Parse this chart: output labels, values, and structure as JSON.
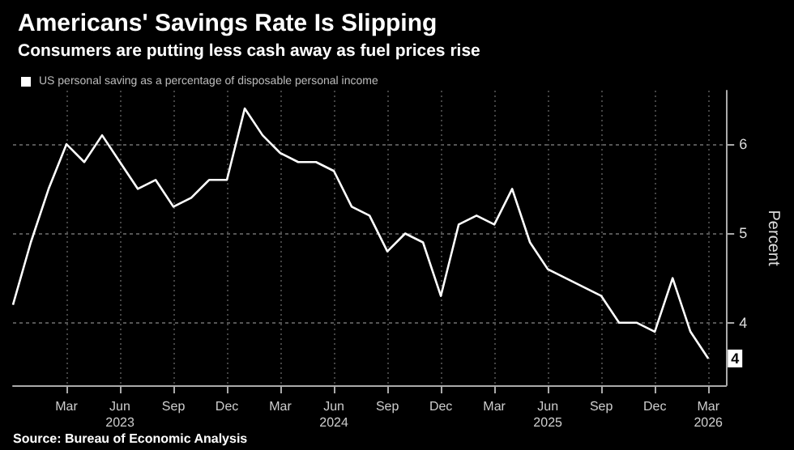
{
  "chart_data": {
    "type": "line",
    "title": "Americans' Savings Rate Is Slipping",
    "subtitle": "Consumers are putting less cash away as fuel prices rise",
    "ylabel": "Percent",
    "annotations": [
      "Source: Bureau of Economic Analysis"
    ],
    "x": [
      "2022-12",
      "2023-01",
      "2023-02",
      "2023-03",
      "2023-04",
      "2023-05",
      "2023-06",
      "2023-07",
      "2023-08",
      "2023-09",
      "2023-10",
      "2023-11",
      "2023-12",
      "2024-01",
      "2024-02",
      "2024-03",
      "2024-04",
      "2024-05",
      "2024-06",
      "2024-07",
      "2024-08",
      "2024-09",
      "2024-10",
      "2024-11",
      "2024-12",
      "2025-01",
      "2025-02",
      "2025-03",
      "2025-04",
      "2025-05",
      "2025-06",
      "2025-07",
      "2025-08",
      "2025-09",
      "2025-10",
      "2025-11",
      "2025-12",
      "2026-01",
      "2026-02",
      "2026-03"
    ],
    "series": [
      {
        "name": "US personal saving as a percentage of disposable personal income",
        "color": "#ffffff",
        "values": [
          4.2,
          4.9,
          5.5,
          6.0,
          5.8,
          6.1,
          5.8,
          5.5,
          5.6,
          5.3,
          5.4,
          5.6,
          5.6,
          6.4,
          6.1,
          5.9,
          5.8,
          5.8,
          5.7,
          5.3,
          5.2,
          4.8,
          5.0,
          4.9,
          4.3,
          5.1,
          5.2,
          5.1,
          5.5,
          4.9,
          4.6,
          4.5,
          4.4,
          4.3,
          4.0,
          4.0,
          3.9,
          4.5,
          3.9,
          3.6
        ],
        "value_labels": [
          null,
          null,
          null,
          null,
          null,
          null,
          null,
          null,
          null,
          null,
          null,
          null,
          null,
          null,
          null,
          null,
          null,
          null,
          null,
          null,
          null,
          null,
          null,
          null,
          null,
          null,
          null,
          null,
          null,
          null,
          null,
          null,
          null,
          null,
          null,
          null,
          null,
          null,
          null,
          "4"
        ]
      }
    ],
    "xlim": [
      "2022-12",
      "2026-04"
    ],
    "xticks": [
      {
        "value": "2023-03",
        "label": "Mar"
      },
      {
        "value": "2023-06",
        "label": "Jun\n2023"
      },
      {
        "value": "2023-09",
        "label": "Sep"
      },
      {
        "value": "2023-12",
        "label": "Dec"
      },
      {
        "value": "2024-03",
        "label": "Mar"
      },
      {
        "value": "2024-06",
        "label": "Jun\n2024"
      },
      {
        "value": "2024-09",
        "label": "Sep"
      },
      {
        "value": "2024-12",
        "label": "Dec"
      },
      {
        "value": "2025-03",
        "label": "Mar"
      },
      {
        "value": "2025-06",
        "label": "Jun\n2025"
      },
      {
        "value": "2025-09",
        "label": "Sep"
      },
      {
        "value": "2025-12",
        "label": "Dec"
      },
      {
        "value": "2026-03",
        "label": "Mar\n2026"
      }
    ],
    "ylim": [
      3.3,
      6.6
    ],
    "yticks": [
      4,
      5,
      6
    ],
    "grid": true,
    "legend": "top left",
    "marker": "none",
    "line_style": "solid"
  }
}
